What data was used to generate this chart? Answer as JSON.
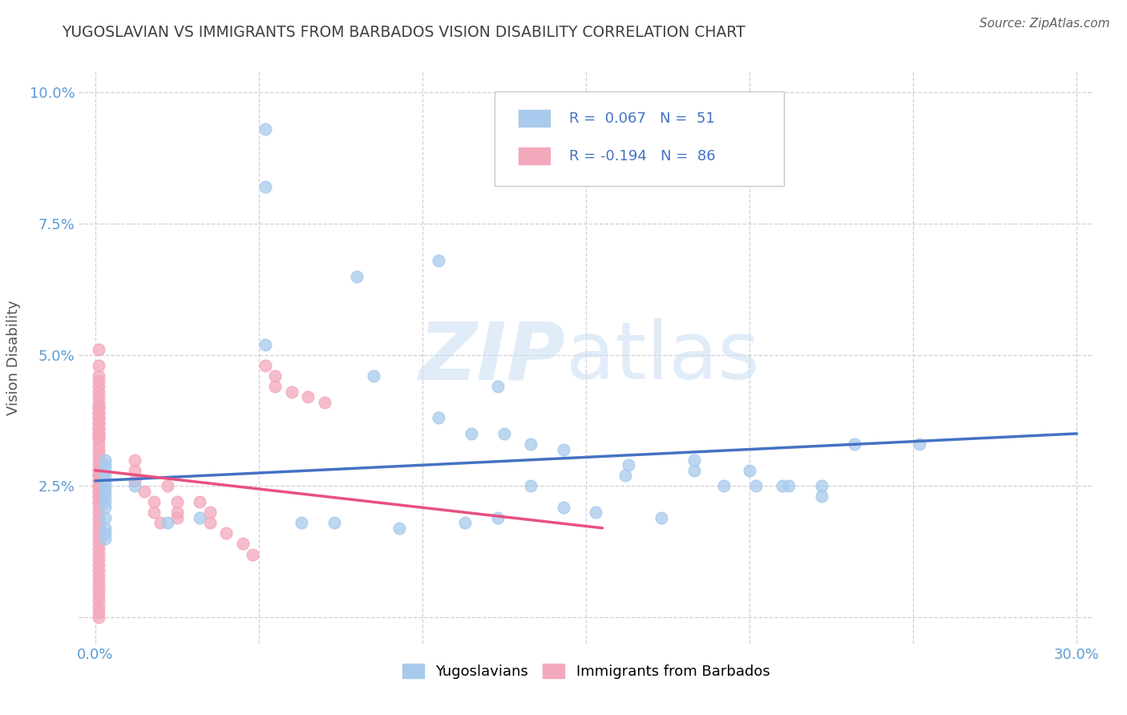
{
  "title": "YUGOSLAVIAN VS IMMIGRANTS FROM BARBADOS VISION DISABILITY CORRELATION CHART",
  "source": "Source: ZipAtlas.com",
  "ylabel": "Vision Disability",
  "xlim": [
    -0.005,
    0.305
  ],
  "ylim": [
    -0.005,
    0.104
  ],
  "xticks": [
    0.0,
    0.05,
    0.1,
    0.15,
    0.2,
    0.25,
    0.3
  ],
  "yticks": [
    0.0,
    0.025,
    0.05,
    0.075,
    0.1
  ],
  "ytick_labels": [
    "",
    "2.5%",
    "5.0%",
    "7.5%",
    "10.0%"
  ],
  "xtick_labels": [
    "0.0%",
    "",
    "",
    "",
    "",
    "",
    "30.0%"
  ],
  "watermark_zip": "ZIP",
  "watermark_atlas": "atlas",
  "blue_color": "#a8caec",
  "pink_color": "#f4a8bc",
  "blue_line_color": "#4472c4",
  "pink_line_color": "#e85080",
  "title_color": "#404040",
  "axis_tick_color": "#5b9bd5",
  "grid_color": "#d0d0d0",
  "blue_scatter_x": [
    0.052,
    0.052,
    0.08,
    0.105,
    0.052,
    0.085,
    0.123,
    0.105,
    0.115,
    0.125,
    0.143,
    0.133,
    0.163,
    0.162,
    0.183,
    0.2,
    0.21,
    0.222,
    0.252,
    0.183,
    0.192,
    0.202,
    0.212,
    0.222,
    0.173,
    0.153,
    0.143,
    0.133,
    0.123,
    0.113,
    0.093,
    0.073,
    0.063,
    0.032,
    0.022,
    0.012,
    0.003,
    0.003,
    0.003,
    0.003,
    0.003,
    0.003,
    0.003,
    0.003,
    0.003,
    0.003,
    0.003,
    0.003,
    0.003,
    0.003,
    0.232
  ],
  "blue_scatter_y": [
    0.093,
    0.082,
    0.065,
    0.068,
    0.052,
    0.046,
    0.044,
    0.038,
    0.035,
    0.035,
    0.032,
    0.033,
    0.029,
    0.027,
    0.028,
    0.028,
    0.025,
    0.025,
    0.033,
    0.03,
    0.025,
    0.025,
    0.025,
    0.023,
    0.019,
    0.02,
    0.021,
    0.025,
    0.019,
    0.018,
    0.017,
    0.018,
    0.018,
    0.019,
    0.018,
    0.025,
    0.029,
    0.03,
    0.028,
    0.027,
    0.026,
    0.025,
    0.024,
    0.023,
    0.022,
    0.021,
    0.019,
    0.017,
    0.016,
    0.015,
    0.033
  ],
  "pink_scatter_x": [
    0.001,
    0.001,
    0.001,
    0.001,
    0.001,
    0.001,
    0.001,
    0.001,
    0.001,
    0.001,
    0.001,
    0.001,
    0.001,
    0.001,
    0.001,
    0.001,
    0.001,
    0.001,
    0.001,
    0.001,
    0.001,
    0.001,
    0.001,
    0.001,
    0.001,
    0.001,
    0.001,
    0.001,
    0.001,
    0.001,
    0.001,
    0.001,
    0.001,
    0.001,
    0.001,
    0.001,
    0.001,
    0.001,
    0.001,
    0.001,
    0.001,
    0.001,
    0.001,
    0.001,
    0.001,
    0.001,
    0.001,
    0.001,
    0.001,
    0.001,
    0.001,
    0.001,
    0.001,
    0.001,
    0.001,
    0.001,
    0.012,
    0.012,
    0.012,
    0.015,
    0.018,
    0.018,
    0.02,
    0.022,
    0.025,
    0.025,
    0.025,
    0.032,
    0.035,
    0.035,
    0.04,
    0.045,
    0.048,
    0.052,
    0.055,
    0.055,
    0.06,
    0.065,
    0.07,
    0.001,
    0.001,
    0.001,
    0.001,
    0.001,
    0.001,
    0.001
  ],
  "pink_scatter_y": [
    0.051,
    0.048,
    0.046,
    0.045,
    0.044,
    0.043,
    0.042,
    0.041,
    0.04,
    0.039,
    0.038,
    0.037,
    0.036,
    0.035,
    0.034,
    0.033,
    0.032,
    0.031,
    0.03,
    0.029,
    0.028,
    0.027,
    0.026,
    0.025,
    0.024,
    0.023,
    0.022,
    0.021,
    0.02,
    0.019,
    0.018,
    0.017,
    0.016,
    0.015,
    0.014,
    0.013,
    0.012,
    0.011,
    0.01,
    0.009,
    0.008,
    0.007,
    0.006,
    0.005,
    0.004,
    0.003,
    0.002,
    0.001,
    0.0,
    0.028,
    0.027,
    0.026,
    0.025,
    0.024,
    0.023,
    0.022,
    0.03,
    0.028,
    0.026,
    0.024,
    0.022,
    0.02,
    0.018,
    0.025,
    0.022,
    0.019,
    0.02,
    0.022,
    0.02,
    0.018,
    0.016,
    0.014,
    0.012,
    0.048,
    0.046,
    0.044,
    0.043,
    0.042,
    0.041,
    0.04,
    0.039,
    0.038,
    0.037,
    0.036,
    0.035,
    0.034
  ],
  "blue_trend_x": [
    0.0,
    0.3
  ],
  "blue_trend_y": [
    0.026,
    0.035
  ],
  "pink_trend_x": [
    0.0,
    0.155
  ],
  "pink_trend_y": [
    0.028,
    0.017
  ]
}
